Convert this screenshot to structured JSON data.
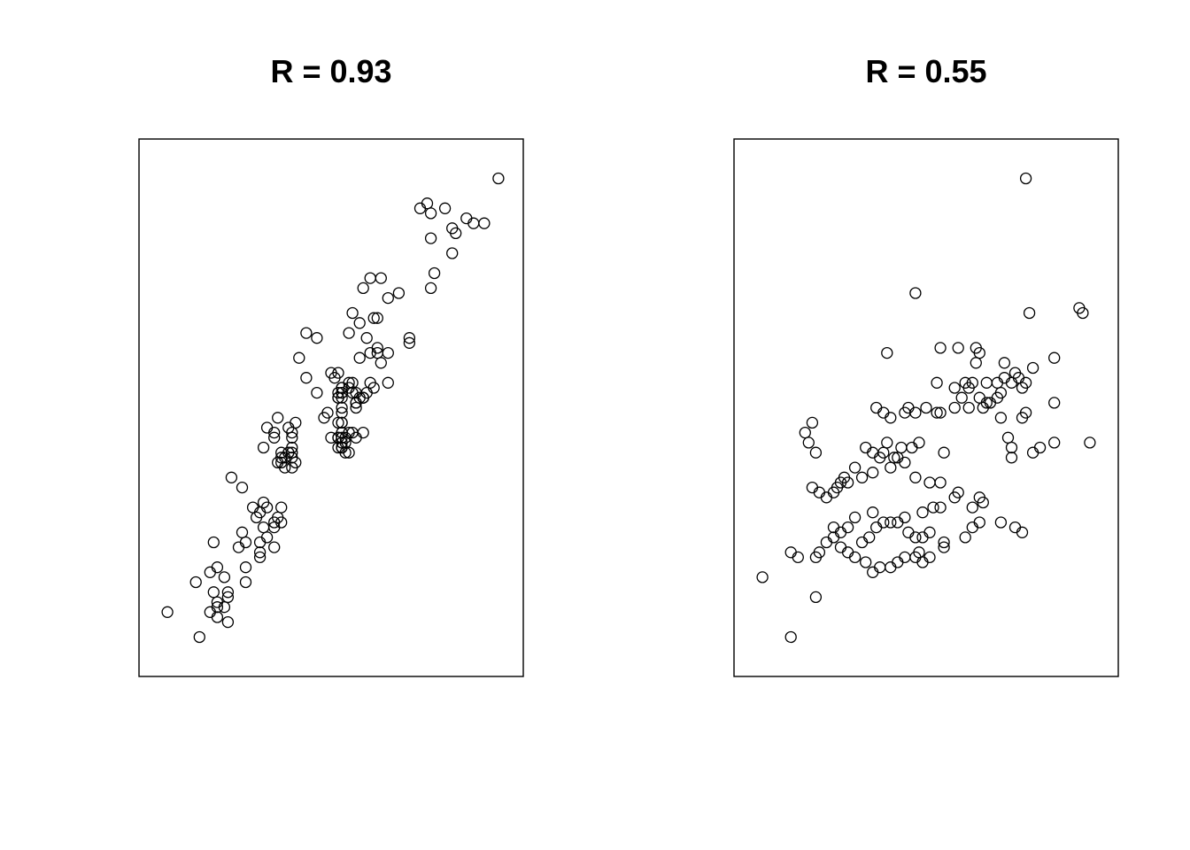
{
  "chart_data": [
    {
      "type": "scatter",
      "title": "R = 0.93",
      "xlabel": "",
      "ylabel": "",
      "axes": "none",
      "grid": false,
      "xlim": [
        0,
        100
      ],
      "ylim": [
        0,
        100
      ],
      "points": [
        [
          97,
          96
        ],
        [
          75,
          90
        ],
        [
          82,
          90
        ],
        [
          78,
          89
        ],
        [
          88,
          88
        ],
        [
          77,
          91
        ],
        [
          90,
          87
        ],
        [
          93,
          87
        ],
        [
          84,
          86
        ],
        [
          85,
          85
        ],
        [
          78,
          84
        ],
        [
          84,
          81
        ],
        [
          79,
          77
        ],
        [
          61,
          76
        ],
        [
          78,
          74
        ],
        [
          64,
          76
        ],
        [
          59,
          74
        ],
        [
          69,
          73
        ],
        [
          66,
          72
        ],
        [
          56,
          69
        ],
        [
          63,
          68
        ],
        [
          62,
          68
        ],
        [
          58,
          67
        ],
        [
          43,
          65
        ],
        [
          55,
          65
        ],
        [
          72,
          64
        ],
        [
          72,
          63
        ],
        [
          46,
          64
        ],
        [
          60,
          64
        ],
        [
          63,
          62
        ],
        [
          61,
          61
        ],
        [
          63,
          61
        ],
        [
          66,
          61
        ],
        [
          58,
          60
        ],
        [
          64,
          59
        ],
        [
          41,
          60
        ],
        [
          51,
          56
        ],
        [
          52,
          57
        ],
        [
          50,
          57
        ],
        [
          55,
          55
        ],
        [
          61,
          55
        ],
        [
          66,
          55
        ],
        [
          56,
          55
        ],
        [
          62,
          54
        ],
        [
          55,
          54
        ],
        [
          43,
          56
        ],
        [
          53,
          54
        ],
        [
          56,
          53
        ],
        [
          53,
          54
        ],
        [
          60,
          53
        ],
        [
          46,
          53
        ],
        [
          53,
          53
        ],
        [
          57,
          53
        ],
        [
          53,
          52
        ],
        [
          59,
          52
        ],
        [
          52,
          52
        ],
        [
          59,
          52
        ],
        [
          58,
          52
        ],
        [
          53,
          53
        ],
        [
          57,
          51
        ],
        [
          59,
          52
        ],
        [
          57,
          51
        ],
        [
          52,
          52
        ],
        [
          52,
          53
        ],
        [
          57,
          50
        ],
        [
          53,
          50
        ],
        [
          53,
          49
        ],
        [
          49,
          49
        ],
        [
          48,
          48
        ],
        [
          53,
          47
        ],
        [
          52,
          47
        ],
        [
          53,
          47
        ],
        [
          59,
          45
        ],
        [
          54,
          44
        ],
        [
          53,
          44
        ],
        [
          52,
          44
        ],
        [
          57,
          44
        ],
        [
          54,
          43
        ],
        [
          53,
          42
        ],
        [
          53,
          42
        ],
        [
          54,
          41
        ],
        [
          56,
          45
        ],
        [
          55,
          45
        ],
        [
          53,
          45
        ],
        [
          50,
          44
        ],
        [
          52,
          44
        ],
        [
          53,
          43
        ],
        [
          53,
          42
        ],
        [
          52,
          42
        ],
        [
          55,
          41
        ],
        [
          35,
          48
        ],
        [
          40,
          47
        ],
        [
          32,
          46
        ],
        [
          38,
          46
        ],
        [
          34,
          45
        ],
        [
          39,
          45
        ],
        [
          34,
          44
        ],
        [
          39,
          44
        ],
        [
          31,
          42
        ],
        [
          39,
          42
        ],
        [
          38,
          41
        ],
        [
          38,
          41
        ],
        [
          36,
          41
        ],
        [
          39,
          41
        ],
        [
          36,
          40
        ],
        [
          39,
          40
        ],
        [
          37,
          40
        ],
        [
          36,
          39
        ],
        [
          35,
          39
        ],
        [
          40,
          39
        ],
        [
          39,
          38
        ],
        [
          37,
          38
        ],
        [
          22,
          36
        ],
        [
          25,
          34
        ],
        [
          31,
          31
        ],
        [
          32,
          30
        ],
        [
          28,
          30
        ],
        [
          36,
          30
        ],
        [
          30,
          29
        ],
        [
          35,
          28
        ],
        [
          29,
          28
        ],
        [
          34,
          27
        ],
        [
          36,
          27
        ],
        [
          31,
          26
        ],
        [
          34,
          26
        ],
        [
          25,
          25
        ],
        [
          32,
          24
        ],
        [
          26,
          23
        ],
        [
          30,
          23
        ],
        [
          17,
          23
        ],
        [
          34,
          22
        ],
        [
          24,
          22
        ],
        [
          30,
          21
        ],
        [
          30,
          20
        ],
        [
          26,
          18
        ],
        [
          18,
          18
        ],
        [
          16,
          17
        ],
        [
          20,
          16
        ],
        [
          26,
          15
        ],
        [
          12,
          15
        ],
        [
          21,
          13
        ],
        [
          21,
          12
        ],
        [
          17,
          13
        ],
        [
          18,
          11
        ],
        [
          20,
          10
        ],
        [
          18,
          10
        ],
        [
          4,
          9
        ],
        [
          16,
          9
        ],
        [
          18,
          8
        ],
        [
          21,
          7
        ],
        [
          13,
          4
        ]
      ]
    },
    {
      "type": "scatter",
      "title": "R = 0.55",
      "xlabel": "",
      "ylabel": "",
      "axes": "none",
      "grid": false,
      "xlim": [
        0,
        100
      ],
      "ylim": [
        0,
        100
      ],
      "points": [
        [
          78,
          96
        ],
        [
          47,
          73
        ],
        [
          79,
          69
        ],
        [
          93,
          70
        ],
        [
          94,
          69
        ],
        [
          39,
          61
        ],
        [
          54,
          62
        ],
        [
          59,
          62
        ],
        [
          65,
          61
        ],
        [
          64,
          62
        ],
        [
          64,
          59
        ],
        [
          72,
          59
        ],
        [
          80,
          58
        ],
        [
          86,
          60
        ],
        [
          75,
          57
        ],
        [
          72,
          56
        ],
        [
          76,
          56
        ],
        [
          78,
          55
        ],
        [
          63,
          55
        ],
        [
          61,
          55
        ],
        [
          62,
          54
        ],
        [
          53,
          55
        ],
        [
          58,
          54
        ],
        [
          67,
          55
        ],
        [
          70,
          55
        ],
        [
          74,
          55
        ],
        [
          77,
          54
        ],
        [
          71,
          53
        ],
        [
          65,
          52
        ],
        [
          67,
          51
        ],
        [
          60,
          52
        ],
        [
          70,
          52
        ],
        [
          68,
          51
        ],
        [
          66,
          50
        ],
        [
          62,
          50
        ],
        [
          58,
          50
        ],
        [
          45,
          50
        ],
        [
          50,
          50
        ],
        [
          53,
          49
        ],
        [
          54,
          49
        ],
        [
          47,
          49
        ],
        [
          44,
          49
        ],
        [
          40,
          48
        ],
        [
          36,
          50
        ],
        [
          38,
          49
        ],
        [
          71,
          48
        ],
        [
          77,
          48
        ],
        [
          78,
          49
        ],
        [
          86,
          51
        ],
        [
          96,
          43
        ],
        [
          73,
          44
        ],
        [
          74,
          42
        ],
        [
          80,
          41
        ],
        [
          82,
          42
        ],
        [
          86,
          43
        ],
        [
          74,
          40
        ],
        [
          55,
          41
        ],
        [
          48,
          43
        ],
        [
          46,
          42
        ],
        [
          43,
          42
        ],
        [
          41,
          40
        ],
        [
          38,
          41
        ],
        [
          39,
          43
        ],
        [
          33,
          42
        ],
        [
          35,
          41
        ],
        [
          37,
          40
        ],
        [
          42,
          40
        ],
        [
          44,
          39
        ],
        [
          40,
          38
        ],
        [
          35,
          37
        ],
        [
          30,
          38
        ],
        [
          32,
          36
        ],
        [
          27,
          36
        ],
        [
          26,
          35
        ],
        [
          28,
          35
        ],
        [
          25,
          34
        ],
        [
          24,
          33
        ],
        [
          22,
          32
        ],
        [
          20,
          33
        ],
        [
          18,
          34
        ],
        [
          17,
          43
        ],
        [
          16,
          45
        ],
        [
          19,
          41
        ],
        [
          18,
          47
        ],
        [
          47,
          36
        ],
        [
          51,
          35
        ],
        [
          54,
          35
        ],
        [
          59,
          33
        ],
        [
          58,
          32
        ],
        [
          63,
          30
        ],
        [
          65,
          32
        ],
        [
          66,
          31
        ],
        [
          54,
          30
        ],
        [
          52,
          30
        ],
        [
          49,
          29
        ],
        [
          44,
          28
        ],
        [
          42,
          27
        ],
        [
          40,
          27
        ],
        [
          35,
          29
        ],
        [
          30,
          28
        ],
        [
          28,
          26
        ],
        [
          26,
          25
        ],
        [
          24,
          26
        ],
        [
          22,
          23
        ],
        [
          20,
          21
        ],
        [
          19,
          20
        ],
        [
          49,
          24
        ],
        [
          51,
          25
        ],
        [
          55,
          23
        ],
        [
          55,
          22
        ],
        [
          45,
          25
        ],
        [
          47,
          24
        ],
        [
          48,
          21
        ],
        [
          44,
          20
        ],
        [
          42,
          19
        ],
        [
          40,
          18
        ],
        [
          37,
          18
        ],
        [
          35,
          17
        ],
        [
          33,
          19
        ],
        [
          30,
          20
        ],
        [
          28,
          21
        ],
        [
          26,
          22
        ],
        [
          24,
          24
        ],
        [
          32,
          23
        ],
        [
          34,
          24
        ],
        [
          36,
          26
        ],
        [
          38,
          27
        ],
        [
          61,
          24
        ],
        [
          63,
          26
        ],
        [
          65,
          27
        ],
        [
          71,
          27
        ],
        [
          75,
          26
        ],
        [
          77,
          25
        ],
        [
          12,
          21
        ],
        [
          14,
          20
        ],
        [
          19,
          12
        ],
        [
          4,
          16
        ],
        [
          12,
          4
        ],
        [
          47,
          20
        ],
        [
          49,
          19
        ],
        [
          51,
          20
        ]
      ]
    }
  ]
}
